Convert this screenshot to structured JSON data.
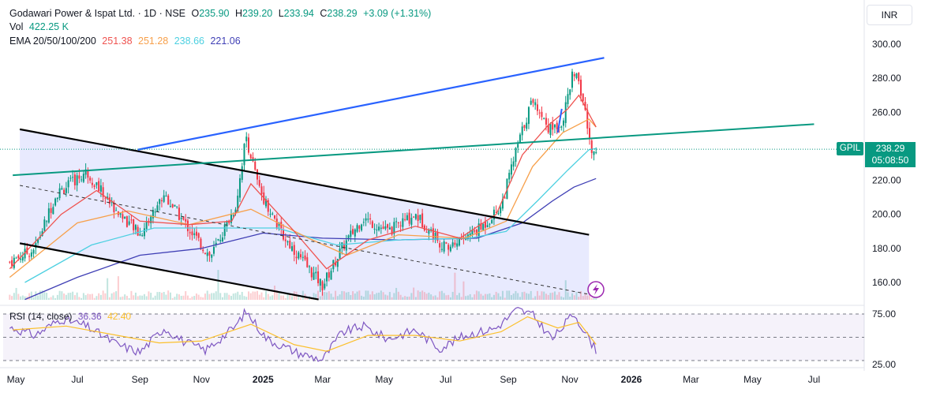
{
  "header": {
    "title": "Godawari Power & Ispat Ltd. · 1D · NSE",
    "open_label": "O",
    "open": "235.90",
    "high_label": "H",
    "high": "239.20",
    "low_label": "L",
    "low": "233.94",
    "close_label": "C",
    "close": "238.29",
    "change": "+3.09 (+1.31%)",
    "vol_label": "Vol",
    "vol": "422.25 K",
    "ema_label": "EMA 20/50/100/200",
    "ema20": "251.38",
    "ema50": "251.28",
    "ema100": "238.66",
    "ema200": "221.06"
  },
  "currency": "INR",
  "badge": {
    "symbol": "GPIL",
    "price": "238.29",
    "countdown": "05:08:50"
  },
  "rsi": {
    "label": "RSI (14, close)",
    "value1": "36.36",
    "value2": "42.40"
  },
  "colors": {
    "ema20": "#ef5350",
    "ema50": "#f7a04b",
    "ema100": "#4dd0e1",
    "ema200": "#3f3fb5",
    "up": "#089981",
    "down": "#f23645",
    "rsi": "#7e57c2",
    "rsi_ma": "#fbc02d",
    "trend_upper": "#2962ff",
    "trend_green": "#089981"
  },
  "chart_data": {
    "type": "candlestick",
    "y_ticks": [
      "300.00",
      "280.00",
      "260.00",
      "240.00",
      "220.00",
      "200.00",
      "180.00",
      "160.00"
    ],
    "y_values": [
      300,
      280,
      260,
      240,
      220,
      200,
      180,
      160
    ],
    "ylim": [
      150,
      305
    ],
    "x_ticks": [
      "May",
      "Jul",
      "Sep",
      "Nov",
      "2025",
      "Mar",
      "May",
      "Jul",
      "Sep",
      "Nov",
      "2026",
      "Mar",
      "May",
      "Jul"
    ],
    "x_tick_months": [
      "2024-05",
      "2024-07",
      "2024-09",
      "2024-11",
      "2025-01",
      "2025-03",
      "2025-05",
      "2025-07",
      "2025-09",
      "2025-11",
      "2026-01",
      "2026-03",
      "2026-05",
      "2026-07"
    ],
    "price_path": [
      [
        "2024-04-25",
        172
      ],
      [
        "2024-05-20",
        180
      ],
      [
        "2024-06-10",
        212
      ],
      [
        "2024-07-10",
        225
      ],
      [
        "2024-08-05",
        205
      ],
      [
        "2024-09-01",
        188
      ],
      [
        "2024-09-25",
        212
      ],
      [
        "2024-10-15",
        195
      ],
      [
        "2024-11-10",
        175
      ],
      [
        "2024-12-05",
        205
      ],
      [
        "2024-12-15",
        246
      ],
      [
        "2024-12-28",
        215
      ],
      [
        "2025-01-20",
        188
      ],
      [
        "2025-02-10",
        172
      ],
      [
        "2025-03-01",
        158
      ],
      [
        "2025-03-20",
        180
      ],
      [
        "2025-04-10",
        198
      ],
      [
        "2025-05-05",
        190
      ],
      [
        "2025-06-01",
        200
      ],
      [
        "2025-07-01",
        180
      ],
      [
        "2025-08-05",
        192
      ],
      [
        "2025-08-25",
        205
      ],
      [
        "2025-09-10",
        240
      ],
      [
        "2025-09-25",
        268
      ],
      [
        "2025-10-12",
        250
      ],
      [
        "2025-10-25",
        255
      ],
      [
        "2025-11-05",
        285
      ],
      [
        "2025-11-15",
        265
      ],
      [
        "2025-11-22",
        236
      ],
      [
        "2025-11-27",
        238.29
      ]
    ],
    "ema20_path": [
      [
        "2024-04-25",
        168
      ],
      [
        "2024-06-15",
        200
      ],
      [
        "2024-07-20",
        214
      ],
      [
        "2024-09-01",
        196
      ],
      [
        "2024-10-20",
        194
      ],
      [
        "2024-12-01",
        196
      ],
      [
        "2024-12-20",
        218
      ],
      [
        "2025-02-01",
        190
      ],
      [
        "2025-03-05",
        168
      ],
      [
        "2025-04-15",
        185
      ],
      [
        "2025-06-01",
        193
      ],
      [
        "2025-07-15",
        186
      ],
      [
        "2025-08-20",
        200
      ],
      [
        "2025-09-15",
        235
      ],
      [
        "2025-10-10",
        252
      ],
      [
        "2025-10-30",
        262
      ],
      [
        "2025-11-10",
        270
      ],
      [
        "2025-11-27",
        251.38
      ]
    ],
    "ema50_path": [
      [
        "2024-04-25",
        163
      ],
      [
        "2024-07-01",
        195
      ],
      [
        "2024-08-20",
        202
      ],
      [
        "2024-10-20",
        194
      ],
      [
        "2024-12-20",
        203
      ],
      [
        "2025-02-15",
        186
      ],
      [
        "2025-03-25",
        176
      ],
      [
        "2025-05-15",
        188
      ],
      [
        "2025-07-20",
        186
      ],
      [
        "2025-08-30",
        196
      ],
      [
        "2025-09-25",
        228
      ],
      [
        "2025-10-25",
        248
      ],
      [
        "2025-11-20",
        256
      ],
      [
        "2025-11-27",
        251.28
      ]
    ],
    "ema100_path": [
      [
        "2024-05-10",
        160
      ],
      [
        "2024-07-15",
        182
      ],
      [
        "2024-09-15",
        192
      ],
      [
        "2024-11-15",
        192
      ],
      [
        "2025-01-15",
        192
      ],
      [
        "2025-03-15",
        182
      ],
      [
        "2025-05-15",
        185
      ],
      [
        "2025-07-25",
        186
      ],
      [
        "2025-08-30",
        190
      ],
      [
        "2025-09-30",
        208
      ],
      [
        "2025-10-30",
        226
      ],
      [
        "2025-11-20",
        238
      ],
      [
        "2025-11-27",
        238.66
      ]
    ],
    "ema200_path": [
      [
        "2024-05-10",
        150
      ],
      [
        "2024-07-01",
        163
      ],
      [
        "2024-09-01",
        176
      ],
      [
        "2024-11-01",
        180
      ],
      [
        "2025-01-01",
        189
      ],
      [
        "2025-03-01",
        186
      ],
      [
        "2025-05-15",
        185
      ],
      [
        "2025-08-01",
        186
      ],
      [
        "2025-09-15",
        195
      ],
      [
        "2025-10-15",
        208
      ],
      [
        "2025-11-05",
        216
      ],
      [
        "2025-11-27",
        221.06
      ]
    ],
    "lines": [
      {
        "name": "channel-upper",
        "x1": "2024-05-05",
        "y1": 250,
        "x2": "2025-11-20",
        "y2": 188
      },
      {
        "name": "channel-lower",
        "x1": "2024-05-05",
        "y1": 183,
        "x2": "2025-02-25",
        "y2": 150
      },
      {
        "name": "channel-mid",
        "x1": "2024-05-05",
        "y1": 217,
        "x2": "2025-11-20",
        "y2": 153
      },
      {
        "name": "rising-trend",
        "x1": "2024-08-30",
        "y1": 238,
        "x2": "2025-12-05",
        "y2": 292
      },
      {
        "name": "green-trend",
        "x1": "2024-04-28",
        "y1": 223,
        "x2": "2026-07-01",
        "y2": 253
      }
    ],
    "rsi_levels": [
      "75.00",
      "25.00"
    ],
    "rsi_ylim": [
      20,
      82
    ],
    "rsi_path": [
      [
        "2024-04-28",
        60
      ],
      [
        "2024-05-20",
        52
      ],
      [
        "2024-06-15",
        70
      ],
      [
        "2024-07-10",
        62
      ],
      [
        "2024-08-10",
        42
      ],
      [
        "2024-09-01",
        34
      ],
      [
        "2024-09-25",
        60
      ],
      [
        "2024-10-15",
        45
      ],
      [
        "2024-11-05",
        36
      ],
      [
        "2024-12-05",
        62
      ],
      [
        "2024-12-15",
        78
      ],
      [
        "2025-01-05",
        48
      ],
      [
        "2025-02-05",
        33
      ],
      [
        "2025-03-01",
        26
      ],
      [
        "2025-03-20",
        55
      ],
      [
        "2025-04-10",
        62
      ],
      [
        "2025-05-05",
        48
      ],
      [
        "2025-06-01",
        58
      ],
      [
        "2025-06-25",
        38
      ],
      [
        "2025-07-20",
        52
      ],
      [
        "2025-08-20",
        60
      ],
      [
        "2025-09-10",
        80
      ],
      [
        "2025-09-25",
        74
      ],
      [
        "2025-10-15",
        48
      ],
      [
        "2025-11-05",
        76
      ],
      [
        "2025-11-18",
        52
      ],
      [
        "2025-11-27",
        36.36
      ]
    ],
    "rsi_ma_path": [
      [
        "2024-04-28",
        58
      ],
      [
        "2024-06-20",
        62
      ],
      [
        "2024-08-20",
        50
      ],
      [
        "2024-09-20",
        44
      ],
      [
        "2024-11-01",
        46
      ],
      [
        "2024-12-20",
        64
      ],
      [
        "2025-02-01",
        42
      ],
      [
        "2025-03-05",
        35
      ],
      [
        "2025-04-15",
        52
      ],
      [
        "2025-06-01",
        52
      ],
      [
        "2025-07-15",
        46
      ],
      [
        "2025-08-25",
        56
      ],
      [
        "2025-09-20",
        72
      ],
      [
        "2025-10-20",
        60
      ],
      [
        "2025-11-10",
        66
      ],
      [
        "2025-11-27",
        42.4
      ]
    ]
  }
}
